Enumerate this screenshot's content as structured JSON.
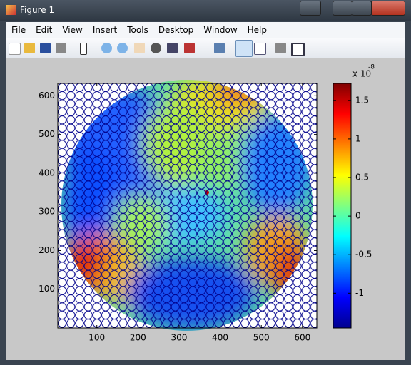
{
  "window": {
    "title": "Figure 1",
    "menu": [
      "File",
      "Edit",
      "View",
      "Insert",
      "Tools",
      "Desktop",
      "Window",
      "Help"
    ]
  },
  "chart_data": {
    "type": "heatmap",
    "xlim": [
      5,
      635
    ],
    "ylim": [
      0,
      632
    ],
    "xticks": [
      100,
      200,
      300,
      400,
      500,
      600
    ],
    "yticks": [
      100,
      200,
      300,
      400,
      500,
      600
    ],
    "colorbar": {
      "clim": [
        -1.45,
        1.72
      ],
      "ticks": [
        -1,
        -0.5,
        0,
        0.5,
        1,
        1.5
      ],
      "exponent_label": "x 10",
      "exponent": -8,
      "colormap": "jet"
    }
  }
}
